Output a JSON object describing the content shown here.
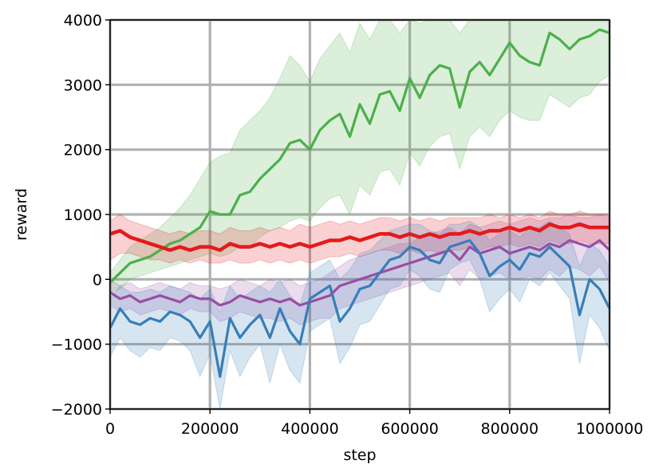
{
  "chart_data": {
    "type": "line",
    "title": "",
    "xlabel": "step",
    "ylabel": "reward",
    "xlim": [
      0,
      1000000
    ],
    "ylim": [
      -2000,
      4000
    ],
    "xticks": [
      0,
      200000,
      400000,
      600000,
      800000,
      1000000
    ],
    "xtick_labels": [
      "0",
      "200000",
      "400000",
      "600000",
      "800000",
      "1000000"
    ],
    "yticks": [
      -2000,
      -1000,
      0,
      1000,
      2000,
      3000,
      4000
    ],
    "ytick_labels": [
      "−2000",
      "−1000",
      "0",
      "1000",
      "2000",
      "3000",
      "4000"
    ],
    "grid": true,
    "legend": "none",
    "colors": {
      "grid": "#b0b0b0",
      "axis": "#000000"
    },
    "series": [
      {
        "color": "#4daf4a",
        "x": [
          0,
          20000,
          40000,
          60000,
          80000,
          100000,
          120000,
          140000,
          160000,
          180000,
          200000,
          220000,
          240000,
          260000,
          280000,
          300000,
          320000,
          340000,
          360000,
          380000,
          400000,
          420000,
          440000,
          460000,
          480000,
          500000,
          520000,
          540000,
          560000,
          580000,
          600000,
          620000,
          640000,
          660000,
          680000,
          700000,
          720000,
          740000,
          760000,
          780000,
          800000,
          820000,
          840000,
          860000,
          880000,
          900000,
          920000,
          940000,
          960000,
          980000,
          1000000
        ],
        "y": [
          -50,
          100,
          250,
          300,
          350,
          450,
          550,
          600,
          700,
          800,
          1050,
          1000,
          1000,
          1300,
          1350,
          1550,
          1700,
          1850,
          2100,
          2150,
          2000,
          2300,
          2450,
          2550,
          2200,
          2700,
          2400,
          2850,
          2900,
          2600,
          3100,
          2800,
          3150,
          3300,
          3250,
          2650,
          3200,
          3350,
          3150,
          3400,
          3650,
          3450,
          3350,
          3300,
          3800,
          3700,
          3550,
          3700,
          3750,
          3850,
          3800
        ],
        "upper": [
          100,
          300,
          500,
          600,
          700,
          800,
          950,
          1100,
          1300,
          1550,
          1800,
          1900,
          1950,
          2300,
          2450,
          2600,
          2800,
          3100,
          3450,
          3300,
          3050,
          3400,
          3600,
          3800,
          3500,
          3950,
          3700,
          4000,
          4000,
          3800,
          4000,
          3950,
          4000,
          4000,
          4000,
          3800,
          4000,
          4000,
          4000,
          4000,
          4000,
          4000,
          4000,
          4000,
          4000,
          4000,
          4000,
          4000,
          4000,
          4000,
          4000
        ],
        "lower": [
          -200,
          -150,
          0,
          50,
          100,
          150,
          200,
          250,
          300,
          350,
          400,
          350,
          400,
          500,
          500,
          650,
          750,
          800,
          900,
          950,
          900,
          1100,
          1250,
          1300,
          1000,
          1450,
          1300,
          1650,
          1700,
          1450,
          1950,
          1750,
          2050,
          2200,
          2250,
          1700,
          2200,
          2350,
          2200,
          2450,
          2600,
          2500,
          2450,
          2450,
          2850,
          2750,
          2650,
          2800,
          2850,
          3050,
          3150
        ]
      },
      {
        "color": "#984ea3",
        "x": [
          0,
          20000,
          40000,
          60000,
          80000,
          100000,
          120000,
          140000,
          160000,
          180000,
          200000,
          220000,
          240000,
          260000,
          280000,
          300000,
          320000,
          340000,
          360000,
          380000,
          400000,
          420000,
          440000,
          460000,
          480000,
          500000,
          520000,
          540000,
          560000,
          580000,
          600000,
          620000,
          640000,
          660000,
          680000,
          700000,
          720000,
          740000,
          760000,
          780000,
          800000,
          820000,
          840000,
          860000,
          880000,
          900000,
          920000,
          940000,
          960000,
          980000,
          1000000
        ],
        "y": [
          -200,
          -300,
          -250,
          -350,
          -300,
          -250,
          -300,
          -350,
          -250,
          -300,
          -300,
          -400,
          -350,
          -250,
          -300,
          -350,
          -300,
          -350,
          -300,
          -400,
          -350,
          -300,
          -250,
          -100,
          -50,
          0,
          50,
          100,
          150,
          200,
          250,
          300,
          350,
          400,
          450,
          300,
          500,
          400,
          450,
          500,
          400,
          450,
          500,
          450,
          550,
          500,
          600,
          550,
          500,
          600,
          450
        ],
        "upper": [
          0,
          -100,
          -50,
          -150,
          -100,
          -50,
          -100,
          -150,
          -50,
          -100,
          -100,
          -150,
          -100,
          0,
          -50,
          -100,
          0,
          -50,
          0,
          -100,
          -50,
          0,
          100,
          200,
          300,
          350,
          400,
          450,
          500,
          550,
          550,
          650,
          700,
          750,
          800,
          700,
          850,
          800,
          850,
          900,
          850,
          900,
          950,
          900,
          950,
          950,
          1000,
          950,
          950,
          1000,
          950
        ],
        "lower": [
          -400,
          -500,
          -450,
          -550,
          -500,
          -450,
          -500,
          -550,
          -450,
          -500,
          -500,
          -650,
          -600,
          -500,
          -550,
          -600,
          -600,
          -650,
          -600,
          -700,
          -650,
          -600,
          -600,
          -450,
          -400,
          -350,
          -300,
          -250,
          -200,
          -150,
          -100,
          -50,
          0,
          50,
          100,
          -100,
          150,
          0,
          50,
          100,
          0,
          0,
          50,
          0,
          150,
          50,
          200,
          150,
          50,
          200,
          -50
        ]
      },
      {
        "color": "#e41a1c",
        "x": [
          0,
          20000,
          40000,
          60000,
          80000,
          100000,
          120000,
          140000,
          160000,
          180000,
          200000,
          220000,
          240000,
          260000,
          280000,
          300000,
          320000,
          340000,
          360000,
          380000,
          400000,
          420000,
          440000,
          460000,
          480000,
          500000,
          520000,
          540000,
          560000,
          580000,
          600000,
          620000,
          640000,
          660000,
          680000,
          700000,
          720000,
          740000,
          760000,
          780000,
          800000,
          820000,
          840000,
          860000,
          880000,
          900000,
          920000,
          940000,
          960000,
          980000,
          1000000
        ],
        "y": [
          700,
          750,
          650,
          600,
          550,
          500,
          450,
          500,
          450,
          500,
          500,
          450,
          550,
          500,
          500,
          550,
          500,
          550,
          500,
          550,
          500,
          550,
          600,
          600,
          650,
          600,
          650,
          700,
          700,
          650,
          700,
          650,
          700,
          650,
          700,
          700,
          750,
          700,
          750,
          750,
          800,
          750,
          800,
          750,
          850,
          800,
          800,
          850,
          800,
          800,
          800
        ],
        "upper": [
          900,
          1000,
          900,
          850,
          800,
          750,
          700,
          750,
          700,
          750,
          750,
          700,
          800,
          750,
          750,
          800,
          750,
          800,
          750,
          850,
          800,
          850,
          900,
          850,
          900,
          850,
          900,
          950,
          950,
          900,
          950,
          900,
          950,
          900,
          950,
          950,
          950,
          950,
          1000,
          950,
          1000,
          950,
          1000,
          950,
          1050,
          1000,
          1000,
          1050,
          1000,
          1000,
          1000
        ],
        "lower": [
          300,
          400,
          400,
          350,
          300,
          300,
          250,
          300,
          250,
          300,
          250,
          250,
          300,
          250,
          250,
          300,
          250,
          300,
          250,
          300,
          250,
          300,
          350,
          350,
          400,
          350,
          400,
          450,
          450,
          400,
          450,
          400,
          450,
          400,
          450,
          450,
          500,
          450,
          500,
          500,
          550,
          500,
          550,
          500,
          600,
          550,
          550,
          600,
          550,
          550,
          550
        ]
      },
      {
        "color": "#377eb8",
        "x": [
          0,
          20000,
          40000,
          60000,
          80000,
          100000,
          120000,
          140000,
          160000,
          180000,
          200000,
          220000,
          240000,
          260000,
          280000,
          300000,
          320000,
          340000,
          360000,
          380000,
          400000,
          420000,
          440000,
          460000,
          480000,
          500000,
          520000,
          540000,
          560000,
          580000,
          600000,
          620000,
          640000,
          660000,
          680000,
          700000,
          720000,
          740000,
          760000,
          780000,
          800000,
          820000,
          840000,
          860000,
          880000,
          900000,
          920000,
          940000,
          960000,
          980000,
          1000000
        ],
        "y": [
          -750,
          -450,
          -650,
          -700,
          -600,
          -650,
          -500,
          -550,
          -650,
          -900,
          -650,
          -1500,
          -600,
          -900,
          -700,
          -550,
          -900,
          -450,
          -800,
          -1000,
          -300,
          -200,
          -100,
          -650,
          -450,
          -150,
          -100,
          100,
          300,
          350,
          500,
          450,
          300,
          250,
          500,
          550,
          600,
          400,
          50,
          200,
          300,
          150,
          400,
          350,
          500,
          350,
          200,
          -550,
          0,
          -150,
          -450
        ],
        "upper": [
          -300,
          -100,
          -200,
          -200,
          -150,
          -200,
          -100,
          -150,
          -200,
          -300,
          -150,
          -500,
          -100,
          -300,
          -200,
          -100,
          -200,
          0,
          -250,
          -400,
          100,
          200,
          300,
          0,
          150,
          400,
          450,
          600,
          750,
          800,
          850,
          850,
          750,
          700,
          850,
          850,
          900,
          800,
          600,
          700,
          750,
          650,
          800,
          800,
          900,
          800,
          700,
          200,
          550,
          450,
          200
        ],
        "lower": [
          -1200,
          -900,
          -1100,
          -1200,
          -1050,
          -1100,
          -900,
          -950,
          -1100,
          -1500,
          -1150,
          -2000,
          -1100,
          -1500,
          -1200,
          -1000,
          -1600,
          -1000,
          -1400,
          -1600,
          -800,
          -700,
          -600,
          -1300,
          -1050,
          -700,
          -650,
          -400,
          -150,
          -100,
          150,
          50,
          -150,
          -200,
          150,
          250,
          300,
          0,
          -500,
          -300,
          -150,
          -350,
          0,
          -100,
          100,
          -100,
          -300,
          -1300,
          -550,
          -750,
          -1100
        ]
      }
    ]
  }
}
